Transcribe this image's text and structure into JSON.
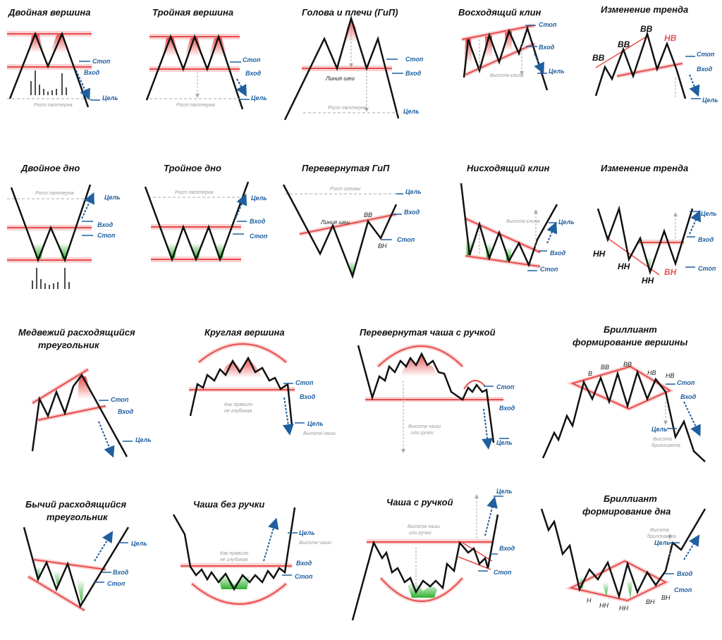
{
  "colors": {
    "line": "#111111",
    "red": "#e74c4c",
    "redglow": "#f6b4b4",
    "blue": "#1f5f9f",
    "gray": "#aaaaaa",
    "green": "#35b035",
    "redfill": "#e74c4c"
  },
  "common": {
    "stop": "Стоп",
    "entry": "Вход",
    "target": "Цель",
    "pattern_growth": "Рост паттерна",
    "neckline": "Линия шеи",
    "wedge_height": "Высота клина",
    "head_growth": "Рост головы",
    "usually_shallow": "Как правило не глубокая",
    "cup_height": "Высота чаши",
    "cup_or_handle_height": "Высота чаши или ручки",
    "diamond_height": "Высота бриллианта"
  },
  "titles": {
    "double_top": "Двойная вершина",
    "triple_top": "Тройная вершина",
    "hs": "Голова и плечи (ГиП)",
    "rising_wedge": "Восходящий клин",
    "trend_change_top": "Изменение тренда",
    "double_bottom": "Двойное дно",
    "triple_bottom": "Тройное дно",
    "inv_hs": "Перевернутая  ГиП",
    "falling_wedge": "Нисходящий клин",
    "trend_change_bottom": "Изменение тренда",
    "bear_triangle_1": "Медвежий расходящийся",
    "bear_triangle_2": "треугольник",
    "round_top": "Круглая вершина",
    "inv_cup": "Перевернутая чаша с ручкой",
    "diamond_top_1": "Бриллиант",
    "diamond_top_2": "формирование вершины",
    "bull_triangle_1": "Бычий расходящийся",
    "bull_triangle_2": "треугольник",
    "cup_no_handle": "Чаша без ручки",
    "cup_handle": "Чаша с ручкой",
    "diamond_bottom_1": "Бриллиант",
    "diamond_bottom_2": "формирование дна"
  },
  "marks": {
    "hh": "ВВ",
    "lh": "НВ",
    "ll": "НН",
    "hl": "ВН",
    "h": "В",
    "l": "Н"
  },
  "text_lines": {
    "usually_1": "Как правило",
    "usually_2": "не глубокая",
    "cup_1": "Высота чаши",
    "cup_2": "или ручки",
    "diamond_1": "Высота",
    "diamond_2": "бриллианта"
  }
}
